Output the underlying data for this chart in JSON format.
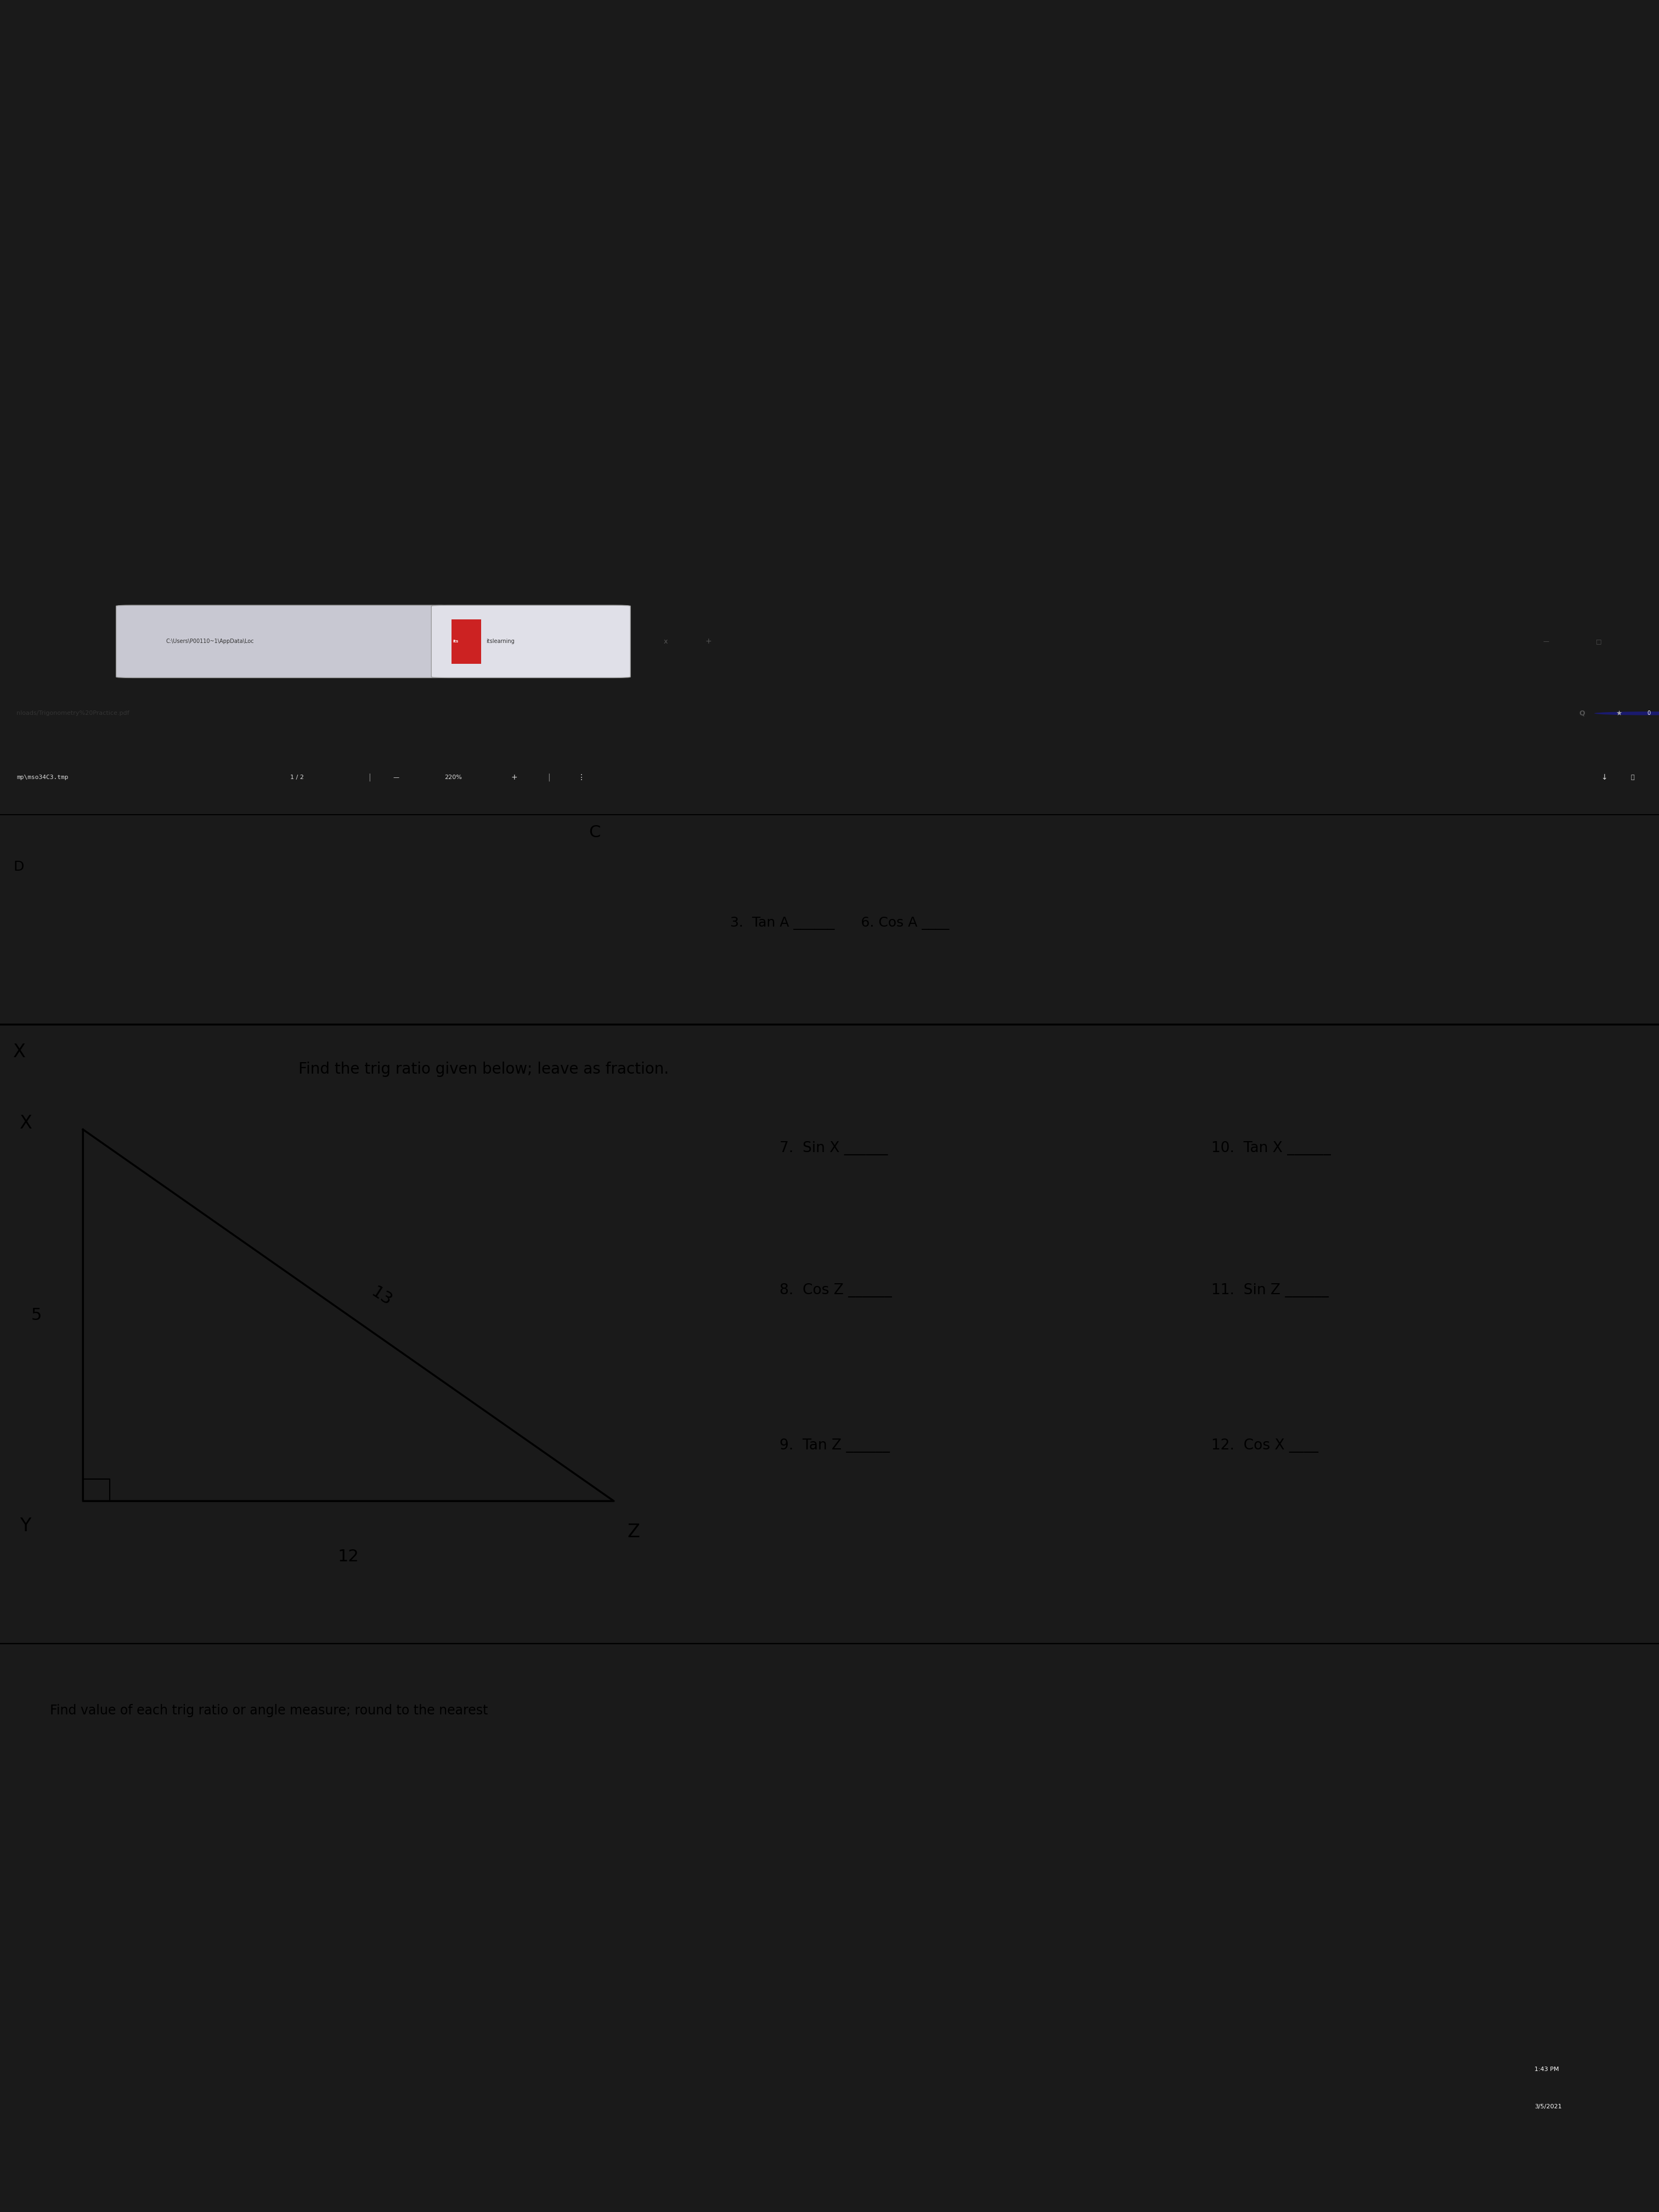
{
  "bg_outer": "#1a1a1a",
  "bg_browser_bar": "#d0d0d8",
  "bg_address_bar": "#e8e8ee",
  "bg_pdf_toolbar": "#3a3a3a",
  "bg_content": "#f0ede8",
  "browser_tab1": "C:\\Users\\P00110~1\\AppData\\Loc",
  "browser_tab2": "itslearning",
  "address_bar": "nloads/Trigonometry%20Practice.pdf",
  "pdf_filename": "mp\\mso34C3.tmp",
  "pdf_pages": "1 / 2",
  "pdf_zoom": "220%",
  "section_top_label_left": "D",
  "section_top_label_c": "C",
  "section_top_text": "3.  Tan A ______      6. Cos A ____",
  "instruction": "Find the trig ratio given below; leave as fraction.",
  "side_XY": "5",
  "side_YZ": "12",
  "side_XZ": "13",
  "problems": [
    {
      "num": "7.",
      "text": "Sin X",
      "blank": "______"
    },
    {
      "num": "8.",
      "text": "Cos Z",
      "blank": "______"
    },
    {
      "num": "9.",
      "text": "Tan Z",
      "blank": "______"
    },
    {
      "num": "10.",
      "text": "Tan X",
      "blank": "______"
    },
    {
      "num": "11.",
      "text": "Sin Z",
      "blank": "______"
    },
    {
      "num": "12.",
      "text": "Cos X",
      "blank": "____"
    }
  ],
  "footer_text": "Find value of each trig ratio or angle measure; round to the nearest",
  "taskbar_bg": "#2d2d2d",
  "taskbar_time": "1:43 PM",
  "taskbar_date": "3/5/2021"
}
